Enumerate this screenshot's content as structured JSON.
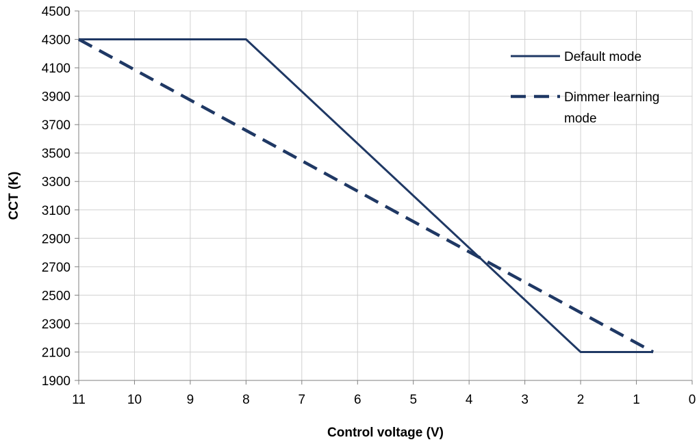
{
  "chart_data": {
    "type": "line",
    "xlabel": "Control voltage (V)",
    "ylabel": "CCT (K)",
    "xlim": [
      11,
      0
    ],
    "ylim": [
      1900,
      4500
    ],
    "x_reversed": true,
    "grid": true,
    "legend_position": "top-right",
    "x_ticks": [
      11,
      10,
      9,
      8,
      7,
      6,
      5,
      4,
      3,
      2,
      1,
      0
    ],
    "y_ticks": [
      1900,
      2100,
      2300,
      2500,
      2700,
      2900,
      3100,
      3300,
      3500,
      3700,
      3900,
      4100,
      4300,
      4500
    ],
    "series": [
      {
        "name": "Default mode",
        "style": "solid",
        "color": "#1f3864",
        "points": [
          [
            11,
            4300
          ],
          [
            8,
            4300
          ],
          [
            2,
            2100
          ],
          [
            0.7,
            2100
          ]
        ]
      },
      {
        "name_lines": [
          "Dimmer learning",
          "mode"
        ],
        "name": "Dimmer learning mode",
        "style": "dashed",
        "color": "#1f3864",
        "points": [
          [
            11,
            4300
          ],
          [
            0.7,
            2100
          ]
        ]
      }
    ]
  }
}
